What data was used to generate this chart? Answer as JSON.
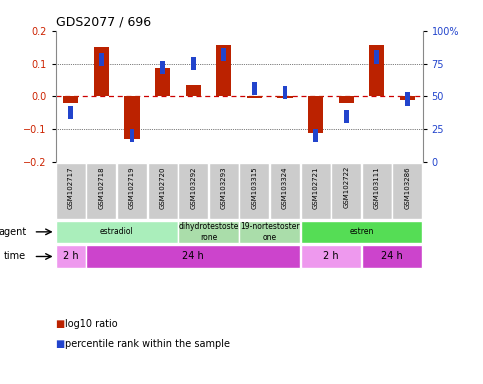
{
  "title": "GDS2077 / 696",
  "samples": [
    "GSM102717",
    "GSM102718",
    "GSM102719",
    "GSM102720",
    "GSM103292",
    "GSM103293",
    "GSM103315",
    "GSM103324",
    "GSM102721",
    "GSM102722",
    "GSM103111",
    "GSM103286"
  ],
  "log10_ratio": [
    -0.02,
    0.15,
    -0.13,
    0.085,
    0.035,
    0.155,
    -0.005,
    -0.005,
    -0.11,
    -0.02,
    0.155,
    -0.01
  ],
  "percentile": [
    38,
    78,
    20,
    72,
    75,
    82,
    56,
    53,
    20,
    35,
    80,
    48
  ],
  "agent_groups": [
    {
      "label": "estradiol",
      "start": 0,
      "end": 4,
      "color": "#AAEEBB"
    },
    {
      "label": "dihydrotestoste\nrone",
      "start": 4,
      "end": 6,
      "color": "#AADDAA"
    },
    {
      "label": "19-nortestoster\none",
      "start": 6,
      "end": 8,
      "color": "#AADDAA"
    },
    {
      "label": "estren",
      "start": 8,
      "end": 12,
      "color": "#55DD55"
    }
  ],
  "time_groups": [
    {
      "label": "2 h",
      "start": 0,
      "end": 1,
      "color": "#EE99EE"
    },
    {
      "label": "24 h",
      "start": 1,
      "end": 8,
      "color": "#CC44CC"
    },
    {
      "label": "2 h",
      "start": 8,
      "end": 10,
      "color": "#EE99EE"
    },
    {
      "label": "24 h",
      "start": 10,
      "end": 12,
      "color": "#CC44CC"
    }
  ],
  "ylim_left": [
    -0.2,
    0.2
  ],
  "ylim_right": [
    0,
    100
  ],
  "bar_color_red": "#BB2200",
  "bar_color_blue": "#2244CC",
  "grid_color": "black",
  "zero_line_color": "#CC0000",
  "left_tick_color": "#CC2200",
  "right_tick_color": "#2244CC",
  "bar_width": 0.5,
  "blue_square_size": 0.04
}
